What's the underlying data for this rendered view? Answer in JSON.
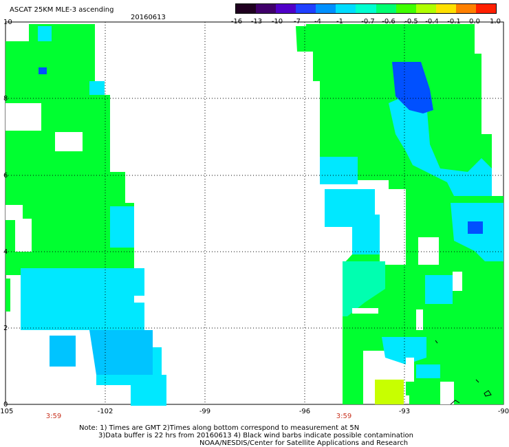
{
  "header": {
    "title": "ASCAT 25KM MLE-3 ascending",
    "date": "20160613"
  },
  "colorbar": {
    "labels": [
      "-16",
      "-13",
      "-10",
      "-7",
      "-4",
      "-1",
      "-0.7",
      "-0.6",
      "-0.5",
      "-0.4",
      "-0.1",
      "0.0",
      "1.0"
    ],
    "colors": [
      "#200020",
      "#40006a",
      "#5000c8",
      "#2040ff",
      "#0090ff",
      "#00dcff",
      "#00ffd0",
      "#00ff70",
      "#40ff00",
      "#b0ff00",
      "#ffe000",
      "#ff8000",
      "#ff2000"
    ]
  },
  "map": {
    "lon_range": [
      -105,
      -90
    ],
    "lat_range": [
      0,
      10
    ],
    "lat_ticks": [
      "10",
      "8",
      "6",
      "4",
      "2",
      "0"
    ],
    "lon_ticks": [
      "-105",
      "-102",
      "-99",
      "-96",
      "-93",
      "-90"
    ],
    "pass_times": [
      "3:59",
      "3:59"
    ],
    "grid": "dotted",
    "swath_colors": {
      "green": "#00ff30",
      "cyan": "#00e8ff",
      "sky": "#00c4ff",
      "teal": "#00ffb0",
      "blue": "#0050ff",
      "yellow": "#c8ff00"
    }
  },
  "notes": {
    "line1": "Note: 1) Times are GMT 2)Times along bottom correspond to measurement at 5N",
    "line2": "3)Data buffer is 22 hrs from 20160613 4) Black wind barbs indicate possible contamination",
    "line3": "NOAA/NESDIS/Center for Satellite Applications and Research"
  }
}
